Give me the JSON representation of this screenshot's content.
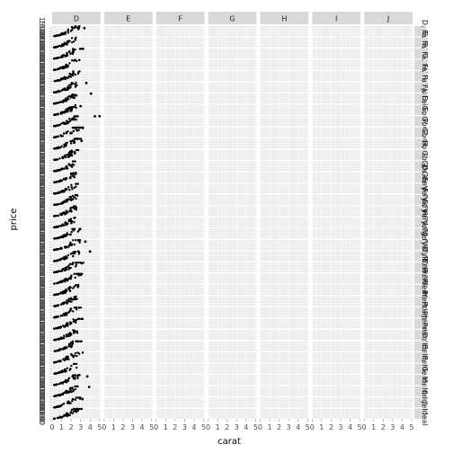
{
  "chart_data": {
    "type": "scatter",
    "facet_cols": [
      "D",
      "E",
      "F",
      "G",
      "H",
      "I",
      "J"
    ],
    "facet_rows": [
      "D, Fair",
      "E, Fair",
      "F, Fair",
      "G, Fair",
      "H, Fair",
      "I, Fair",
      "J, Fair",
      "D, Good",
      "E, Good",
      "F, Good",
      "G, Good",
      "H, Good",
      "I, Good",
      "J, Good",
      "D, Very Good",
      "E, Very Good",
      "F, Very Good",
      "G, Very Good",
      "H, Very Good",
      "I, Very Good",
      "J, Very Good",
      "D, Premium",
      "E, Premium",
      "F, Premium",
      "G, Premium",
      "H, Premium",
      "I, Premium",
      "J, Premium",
      "D, Ideal",
      "E, Ideal",
      "F, Ideal",
      "G, Ideal",
      "H, Ideal",
      "I, Ideal",
      "J, Ideal"
    ],
    "xlabel": "carat",
    "ylabel": "price",
    "xlim": [
      0,
      5.1
    ],
    "ylim": [
      0,
      19000
    ],
    "x_ticks": [
      0,
      1,
      2,
      3,
      4,
      5
    ],
    "x_tick_labels": [
      "0",
      "1",
      "2",
      "3",
      "4",
      "5"
    ],
    "y_ticks": [
      0,
      5000,
      10000,
      15000
    ],
    "y_tick_labels": [
      "0",
      "5000",
      "10000",
      "15000"
    ],
    "grid": true,
    "marker_color": "#000000",
    "panel_color": "#ebebeb",
    "strip_color": "#d9d9d9",
    "populated_column": "D",
    "outlier_points": [
      {
        "row": 0,
        "x": 3.4,
        "y": 15200
      },
      {
        "row": 5,
        "x": 3.6,
        "y": 17800
      },
      {
        "row": 6,
        "x": 4.1,
        "y": 18900
      },
      {
        "row": 7,
        "x": 3.0,
        "y": 16500
      },
      {
        "row": 8,
        "x": 4.5,
        "y": 18700
      },
      {
        "row": 8,
        "x": 5.0,
        "y": 18800
      },
      {
        "row": 10,
        "x": 3.1,
        "y": 14800
      },
      {
        "row": 19,
        "x": 3.5,
        "y": 15800
      },
      {
        "row": 20,
        "x": 4.0,
        "y": 18300
      },
      {
        "row": 31,
        "x": 3.7,
        "y": 16200
      },
      {
        "row": 32,
        "x": 3.9,
        "y": 17500
      },
      {
        "row": 33,
        "x": 3.2,
        "y": 15900
      }
    ]
  }
}
